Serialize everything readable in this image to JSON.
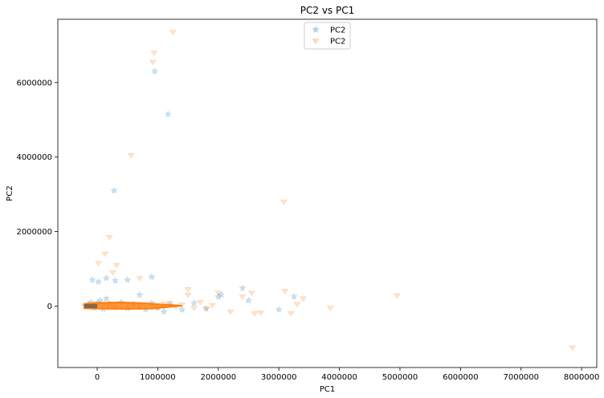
{
  "chart_data": {
    "type": "scatter",
    "title": "PC2 vs PC1",
    "xlabel": "PC1",
    "ylabel": "PC2",
    "xlim": [
      -650000,
      8250000
    ],
    "ylim": [
      -1650000,
      7700000
    ],
    "xticks": [
      0,
      1000000,
      2000000,
      3000000,
      4000000,
      5000000,
      6000000,
      7000000,
      8000000
    ],
    "yticks": [
      0,
      2000000,
      4000000,
      6000000
    ],
    "tick_labels_x": [
      "0",
      "1000000",
      "2000000",
      "3000000",
      "4000000",
      "5000000",
      "6000000",
      "7000000",
      "8000000"
    ],
    "tick_labels_y": [
      "0",
      "2000000",
      "4000000",
      "6000000"
    ],
    "grid": false,
    "legend": "top-center",
    "series": [
      {
        "name": "PC2",
        "marker": "star",
        "color": "#1f77b4",
        "x": [
          -200000,
          -150000,
          -100000,
          -50000,
          0,
          50000,
          100000,
          150000,
          200000,
          300000,
          400000,
          500000,
          600000,
          700000,
          800000,
          900000,
          1000000,
          1200000,
          1400000,
          1600000,
          1800000,
          2000000,
          2400000,
          2500000,
          3000000,
          3250000,
          -80000,
          20000,
          150000,
          300000,
          500000,
          900000,
          950000,
          1170000,
          280000,
          700000,
          1100000,
          2050000
        ],
        "y": [
          0,
          50000,
          100000,
          -50000,
          80000,
          150000,
          -80000,
          200000,
          60000,
          -40000,
          100000,
          -60000,
          50000,
          30000,
          -90000,
          80000,
          -50000,
          40000,
          -100000,
          80000,
          -60000,
          250000,
          480000,
          150000,
          -100000,
          250000,
          700000,
          650000,
          750000,
          680000,
          700000,
          780000,
          6300000,
          5150000,
          3100000,
          300000,
          -150000,
          300000
        ]
      },
      {
        "name": "PC2",
        "marker": "triangle-down",
        "color": "#ff7f0e",
        "x": [
          -200000,
          -150000,
          -100000,
          -50000,
          0,
          50000,
          100000,
          150000,
          200000,
          250000,
          300000,
          400000,
          500000,
          600000,
          700000,
          800000,
          900000,
          1000000,
          1100000,
          1200000,
          1300000,
          1400000,
          1500000,
          1600000,
          1700000,
          1800000,
          1900000,
          2000000,
          2200000,
          2400000,
          2600000,
          2700000,
          3100000,
          3200000,
          3300000,
          3400000,
          3850000,
          4950000,
          7850000,
          940000,
          920000,
          1250000,
          560000,
          200000,
          130000,
          20000,
          260000,
          320000,
          700000,
          1500000,
          2550000,
          3080000
        ],
        "y": [
          0,
          -20000,
          30000,
          20000,
          50000,
          -30000,
          40000,
          20000,
          -40000,
          60000,
          30000,
          -50000,
          20000,
          40000,
          -30000,
          50000,
          30000,
          -40000,
          60000,
          80000,
          -20000,
          40000,
          300000,
          -50000,
          100000,
          -80000,
          20000,
          350000,
          -150000,
          250000,
          -200000,
          -180000,
          400000,
          -200000,
          50000,
          200000,
          -50000,
          280000,
          -1120000,
          6800000,
          6550000,
          7350000,
          4050000,
          1850000,
          1400000,
          1150000,
          900000,
          1100000,
          750000,
          450000,
          350000,
          2800000
        ]
      }
    ]
  }
}
